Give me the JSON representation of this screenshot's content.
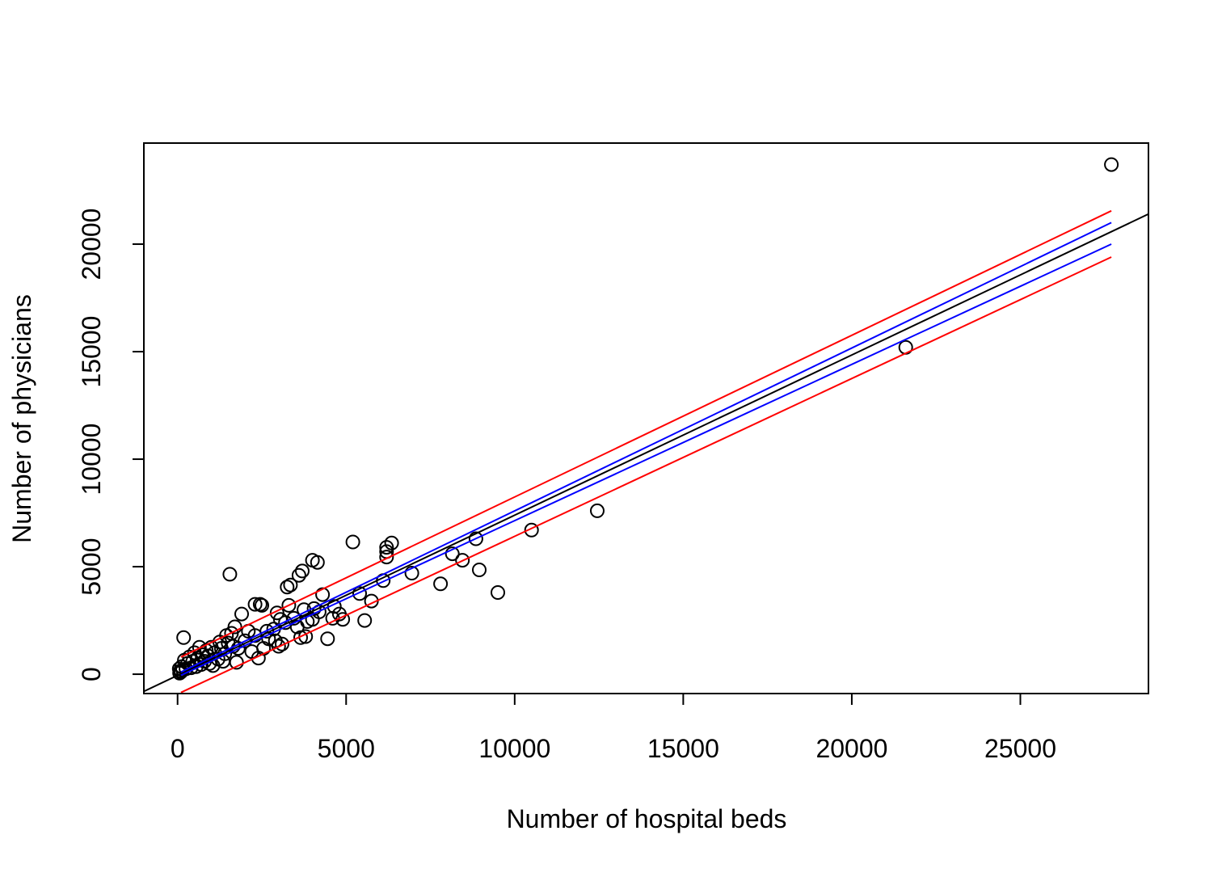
{
  "chart_data": {
    "type": "scatter",
    "title": "",
    "xlabel": "Number of hospital beds",
    "ylabel": "Number of physicians",
    "xlim": [
      -1000,
      28800
    ],
    "ylim": [
      -900,
      24700
    ],
    "x_ticks": [
      0,
      5000,
      10000,
      15000,
      20000,
      25000
    ],
    "y_ticks": [
      0,
      5000,
      10000,
      15000,
      20000
    ],
    "x_tick_labels": [
      "0",
      "5000",
      "10000",
      "15000",
      "20000",
      "25000"
    ],
    "y_tick_labels": [
      "0",
      "5000",
      "10000",
      "15000",
      "20000"
    ],
    "grid": false,
    "colors": {
      "points": "#000000",
      "fit_line": "#000000",
      "confidence_band": "#0000ff",
      "prediction_band": "#ff0000"
    },
    "points": [
      [
        27700,
        23700
      ],
      [
        21600,
        15200
      ],
      [
        12450,
        7600
      ],
      [
        10500,
        6700
      ],
      [
        9500,
        3800
      ],
      [
        8950,
        4850
      ],
      [
        8850,
        6300
      ],
      [
        8450,
        5300
      ],
      [
        8150,
        5600
      ],
      [
        7800,
        4200
      ],
      [
        6950,
        4700
      ],
      [
        6350,
        6100
      ],
      [
        6200,
        5900
      ],
      [
        6200,
        5700
      ],
      [
        6200,
        5450
      ],
      [
        6100,
        4350
      ],
      [
        5750,
        3400
      ],
      [
        5550,
        2500
      ],
      [
        5400,
        3750
      ],
      [
        5200,
        6150
      ],
      [
        4900,
        2550
      ],
      [
        4800,
        2800
      ],
      [
        4650,
        3150
      ],
      [
        4600,
        2600
      ],
      [
        4450,
        1650
      ],
      [
        4300,
        3700
      ],
      [
        4200,
        2900
      ],
      [
        4150,
        5200
      ],
      [
        4050,
        3050
      ],
      [
        4000,
        5300
      ],
      [
        4000,
        2550
      ],
      [
        3850,
        2450
      ],
      [
        3800,
        1750
      ],
      [
        3750,
        3000
      ],
      [
        3700,
        4800
      ],
      [
        3650,
        1700
      ],
      [
        3600,
        4600
      ],
      [
        3550,
        2200
      ],
      [
        3450,
        2600
      ],
      [
        3350,
        4150
      ],
      [
        3300,
        3200
      ],
      [
        3250,
        4050
      ],
      [
        3200,
        2400
      ],
      [
        3100,
        1400
      ],
      [
        3050,
        2550
      ],
      [
        2950,
        2850
      ],
      [
        2900,
        1550
      ],
      [
        2850,
        2100
      ],
      [
        2700,
        1650
      ],
      [
        2550,
        1200
      ],
      [
        2500,
        3200
      ],
      [
        2450,
        3250
      ],
      [
        2400,
        750
      ],
      [
        2300,
        3250
      ],
      [
        2300,
        1800
      ],
      [
        2200,
        1050
      ],
      [
        2100,
        2000
      ],
      [
        2000,
        1550
      ],
      [
        1900,
        2800
      ],
      [
        1800,
        1200
      ],
      [
        1750,
        550
      ],
      [
        1700,
        2200
      ],
      [
        1600,
        1900
      ],
      [
        1550,
        4650
      ],
      [
        1500,
        1450
      ],
      [
        1450,
        1800
      ],
      [
        1400,
        950
      ],
      [
        1300,
        1200
      ],
      [
        1250,
        1500
      ],
      [
        1200,
        700
      ],
      [
        1100,
        1000
      ],
      [
        1000,
        1250
      ],
      [
        950,
        500
      ],
      [
        900,
        850
      ],
      [
        850,
        1100
      ],
      [
        800,
        600
      ],
      [
        750,
        900
      ],
      [
        700,
        450
      ],
      [
        650,
        1250
      ],
      [
        600,
        750
      ],
      [
        550,
        350
      ],
      [
        500,
        1000
      ],
      [
        450,
        600
      ],
      [
        400,
        300
      ],
      [
        350,
        800
      ],
      [
        300,
        500
      ],
      [
        250,
        250
      ],
      [
        200,
        650
      ],
      [
        180,
        1700
      ],
      [
        150,
        200
      ],
      [
        120,
        350
      ],
      [
        100,
        100
      ],
      [
        80,
        150
      ],
      [
        60,
        50
      ],
      [
        50,
        250
      ],
      [
        1650,
        1300
      ],
      [
        1350,
        600
      ],
      [
        1050,
        400
      ],
      [
        2650,
        2000
      ],
      [
        3000,
        1300
      ]
    ],
    "fit_line": {
      "from": [
        -1000,
        -800
      ],
      "to": [
        28800,
        21400
      ]
    },
    "confidence_band": {
      "upper": {
        "from": [
          100,
          100
        ],
        "to": [
          27700,
          21000
        ]
      },
      "lower": {
        "from": [
          100,
          -50
        ],
        "to": [
          27700,
          20000
        ]
      }
    },
    "prediction_band": {
      "upper": {
        "from": [
          100,
          800
        ],
        "to": [
          27700,
          21550
        ]
      },
      "lower": {
        "from": [
          100,
          -850
        ],
        "to": [
          27700,
          19400
        ]
      }
    }
  }
}
